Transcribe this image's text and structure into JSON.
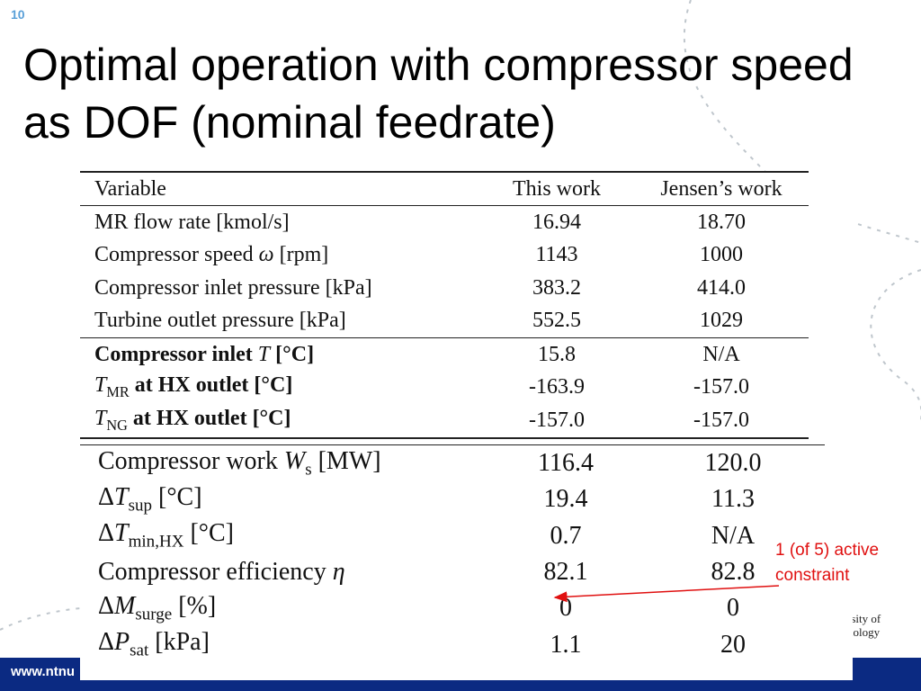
{
  "slide": {
    "number": "10",
    "title": "Optimal operation with compressor speed as DOF (nominal feedrate)",
    "footer_url": "www.ntnu",
    "logo_lines": "rsity of\nnology"
  },
  "table_top": {
    "headers": [
      "Variable",
      "This work",
      "Jensen’s work"
    ],
    "rows": [
      {
        "pre": "MR flow rate [kmol/s]",
        "this": "16.94",
        "jensen": "18.70"
      },
      {
        "pre": "Compressor speed ",
        "sym": "ω",
        "post": " [rpm]",
        "this": "1143",
        "jensen": "1000"
      },
      {
        "pre": "Compressor inlet pressure [kPa]",
        "this": "383.2",
        "jensen": "414.0"
      },
      {
        "pre": "Turbine outlet pressure [kPa]",
        "this": "552.5",
        "jensen": "1029"
      },
      {
        "pre": "Compressor inlet ",
        "sym": "T",
        "post": " [°C]",
        "this": "15.8",
        "jensen": "N/A"
      },
      {
        "sym": "T",
        "sub": "MR",
        "post": " at HX outlet [°C]",
        "this": "-163.9",
        "jensen": "-157.0"
      },
      {
        "sym": "T",
        "sub": "NG",
        "post": " at HX outlet [°C]",
        "this": "-157.0",
        "jensen": "-157.0"
      }
    ]
  },
  "table_bottom": {
    "rows": [
      {
        "pre": "Compressor work ",
        "sym": "W",
        "sub": "s",
        "post": " [MW]",
        "this": "116.4",
        "jensen": "120.0"
      },
      {
        "pre": "Δ",
        "sym": "T",
        "sub": "sup",
        "post": " [°C]",
        "this": "19.4",
        "jensen": "11.3"
      },
      {
        "pre": "Δ",
        "sym": "T",
        "sub": "min,HX",
        "post": " [°C]",
        "this": "0.7",
        "jensen": "N/A"
      },
      {
        "pre": "Compressor efficiency ",
        "sym": "η",
        "post": "",
        "this": "82.1",
        "jensen": "82.8"
      },
      {
        "pre": "Δ",
        "sym": "M",
        "sub": "surge",
        "post": " [%]",
        "this": "0",
        "jensen": "0"
      },
      {
        "pre": "Δ",
        "sym": "P",
        "sub": "sat",
        "post": " [kPa]",
        "this": "1.1",
        "jensen": "20"
      }
    ]
  },
  "annotation": {
    "line1": "1 (of 5) active",
    "line2": "constraint",
    "color": "#e01010"
  },
  "colors": {
    "footer": "#0b2a82",
    "slide_number": "#5aa0d8",
    "decoration": "#bfc6cc"
  }
}
